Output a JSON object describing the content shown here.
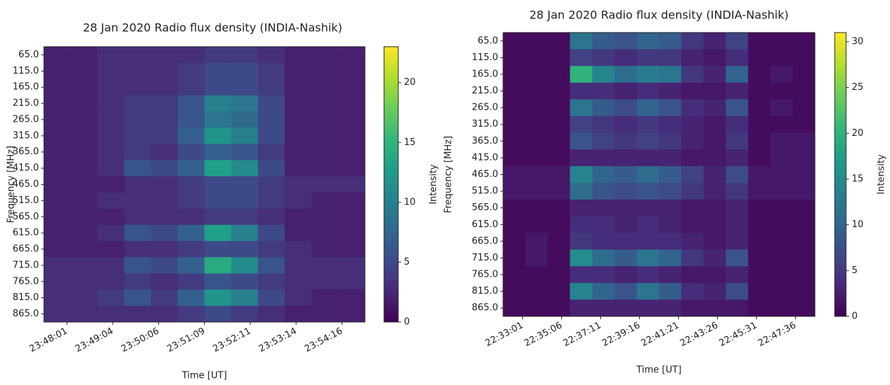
{
  "chart_data": [
    {
      "type": "heatmap",
      "title": "28 Jan 2020 Radio flux density (INDIA-Nashik)",
      "xlabel": "Time [UT]",
      "ylabel": "Frequency [MHz]",
      "xticks": [
        "23:48:01",
        "23:49:04",
        "23:50:06",
        "23:51:09",
        "23:52:11",
        "23:53:14",
        "23:54:16"
      ],
      "yticks": [
        {
          "value": 65,
          "label": "65.0"
        },
        {
          "value": 115,
          "label": "115.0"
        },
        {
          "value": 165,
          "label": "165.0"
        },
        {
          "value": 215,
          "label": "215.0"
        },
        {
          "value": 265,
          "label": "265.0"
        },
        {
          "value": 315,
          "label": "315.0"
        },
        {
          "value": 365,
          "label": "365.0"
        },
        {
          "value": 415,
          "label": "415.0"
        },
        {
          "value": 465,
          "label": "465.0"
        },
        {
          "value": 515,
          "label": "515.0"
        },
        {
          "value": 565,
          "label": "565.0"
        },
        {
          "value": 615,
          "label": "615.0"
        },
        {
          "value": 665,
          "label": "665.0"
        },
        {
          "value": 715,
          "label": "715.0"
        },
        {
          "value": 765,
          "label": "765.0"
        },
        {
          "value": 815,
          "label": "815.0"
        },
        {
          "value": 865,
          "label": "865.0"
        }
      ],
      "values": [
        [
          2,
          2,
          3,
          3,
          3,
          3,
          4,
          4,
          3,
          2,
          2,
          2
        ],
        [
          2,
          2,
          3,
          3,
          3,
          4,
          5,
          5,
          4,
          2,
          2,
          2
        ],
        [
          2,
          2,
          3,
          3,
          3,
          4,
          5,
          5,
          4,
          2,
          2,
          2
        ],
        [
          2,
          2,
          3,
          4,
          4,
          6,
          10,
          9,
          5,
          2,
          2,
          2
        ],
        [
          2,
          2,
          3,
          4,
          4,
          6,
          9,
          8,
          5,
          2,
          2,
          2
        ],
        [
          2,
          2,
          3,
          4,
          4,
          7,
          12,
          10,
          5,
          2,
          2,
          2
        ],
        [
          2,
          2,
          3,
          4,
          3,
          5,
          7,
          6,
          4,
          2,
          2,
          2
        ],
        [
          2,
          2,
          3,
          6,
          5,
          7,
          13,
          11,
          5,
          2,
          2,
          2
        ],
        [
          2,
          2,
          2,
          3,
          3,
          4,
          5,
          5,
          4,
          3,
          3,
          3
        ],
        [
          2,
          2,
          3,
          3,
          3,
          4,
          5,
          5,
          4,
          3,
          2,
          2
        ],
        [
          2,
          2,
          2,
          3,
          3,
          3,
          4,
          4,
          3,
          2,
          2,
          2
        ],
        [
          2,
          2,
          3,
          6,
          5,
          7,
          13,
          10,
          5,
          2,
          2,
          2
        ],
        [
          2,
          2,
          2,
          3,
          3,
          4,
          5,
          5,
          4,
          3,
          2,
          2
        ],
        [
          3,
          3,
          3,
          6,
          5,
          7,
          14,
          11,
          6,
          3,
          3,
          3
        ],
        [
          3,
          3,
          3,
          4,
          3,
          4,
          6,
          5,
          4,
          3,
          3,
          3
        ],
        [
          3,
          3,
          4,
          6,
          4,
          7,
          12,
          10,
          5,
          3,
          2,
          2
        ],
        [
          3,
          3,
          3,
          3,
          3,
          4,
          5,
          4,
          3,
          2,
          2,
          2
        ]
      ],
      "colormap": "viridis",
      "colorbar_label": "Intensity",
      "clim": [
        0,
        23
      ],
      "cticks": [
        0,
        5,
        10,
        15,
        20
      ]
    },
    {
      "type": "heatmap",
      "title": "28 Jan 2020 Radio flux density (INDIA-Nashik)",
      "xlabel": "Time [UT]",
      "ylabel": "Frequency [MHz]",
      "xticks": [
        "22:33:01",
        "22:35:06",
        "22:37:11",
        "22:39:16",
        "22:41:21",
        "22:43:26",
        "22:45:31",
        "22:47:36"
      ],
      "yticks": [
        {
          "value": 65,
          "label": "65.0"
        },
        {
          "value": 115,
          "label": "115.0"
        },
        {
          "value": 165,
          "label": "165.0"
        },
        {
          "value": 215,
          "label": "215.0"
        },
        {
          "value": 265,
          "label": "265.0"
        },
        {
          "value": 315,
          "label": "315.0"
        },
        {
          "value": 365,
          "label": "365.0"
        },
        {
          "value": 415,
          "label": "415.0"
        },
        {
          "value": 465,
          "label": "465.0"
        },
        {
          "value": 515,
          "label": "515.0"
        },
        {
          "value": 565,
          "label": "565.0"
        },
        {
          "value": 615,
          "label": "615.0"
        },
        {
          "value": 665,
          "label": "665.0"
        },
        {
          "value": 715,
          "label": "715.0"
        },
        {
          "value": 765,
          "label": "765.0"
        },
        {
          "value": 815,
          "label": "815.0"
        },
        {
          "value": 865,
          "label": "865.0"
        }
      ],
      "values": [
        [
          1,
          1,
          1,
          12,
          9,
          8,
          10,
          9,
          5,
          3,
          6,
          1,
          1,
          1
        ],
        [
          1,
          1,
          1,
          6,
          5,
          4,
          5,
          5,
          3,
          2,
          4,
          1,
          1,
          1
        ],
        [
          1,
          1,
          1,
          20,
          14,
          11,
          13,
          12,
          5,
          3,
          10,
          1,
          2,
          1
        ],
        [
          1,
          1,
          1,
          4,
          4,
          3,
          4,
          3,
          2,
          2,
          3,
          1,
          1,
          1
        ],
        [
          1,
          1,
          1,
          12,
          9,
          7,
          10,
          8,
          4,
          3,
          8,
          1,
          2,
          1
        ],
        [
          1,
          1,
          1,
          6,
          5,
          4,
          5,
          4,
          3,
          2,
          4,
          1,
          1,
          1
        ],
        [
          1,
          1,
          1,
          8,
          6,
          5,
          6,
          5,
          3,
          2,
          5,
          1,
          2,
          2
        ],
        [
          1,
          1,
          1,
          3,
          3,
          3,
          3,
          3,
          2,
          2,
          3,
          1,
          2,
          2
        ],
        [
          2,
          2,
          2,
          14,
          10,
          9,
          11,
          9,
          6,
          3,
          7,
          2,
          2,
          2
        ],
        [
          2,
          2,
          2,
          11,
          8,
          7,
          8,
          7,
          5,
          3,
          5,
          2,
          2,
          2
        ],
        [
          1,
          1,
          1,
          3,
          3,
          3,
          3,
          3,
          2,
          2,
          3,
          1,
          1,
          1
        ],
        [
          1,
          1,
          1,
          4,
          4,
          3,
          4,
          3,
          2,
          2,
          3,
          1,
          1,
          1
        ],
        [
          1,
          2,
          1,
          5,
          4,
          4,
          4,
          4,
          3,
          2,
          3,
          1,
          1,
          1
        ],
        [
          1,
          2,
          1,
          15,
          11,
          9,
          12,
          10,
          5,
          3,
          8,
          1,
          1,
          1
        ],
        [
          1,
          1,
          1,
          4,
          4,
          3,
          4,
          3,
          2,
          2,
          3,
          1,
          1,
          1
        ],
        [
          1,
          1,
          1,
          14,
          10,
          8,
          12,
          9,
          4,
          3,
          7,
          1,
          1,
          1
        ],
        [
          1,
          1,
          1,
          3,
          3,
          3,
          3,
          3,
          2,
          2,
          2,
          1,
          1,
          1
        ]
      ],
      "colormap": "viridis",
      "colorbar_label": "Intensity",
      "clim": [
        0,
        31
      ],
      "cticks": [
        0,
        5,
        10,
        15,
        20,
        25,
        30
      ]
    }
  ]
}
